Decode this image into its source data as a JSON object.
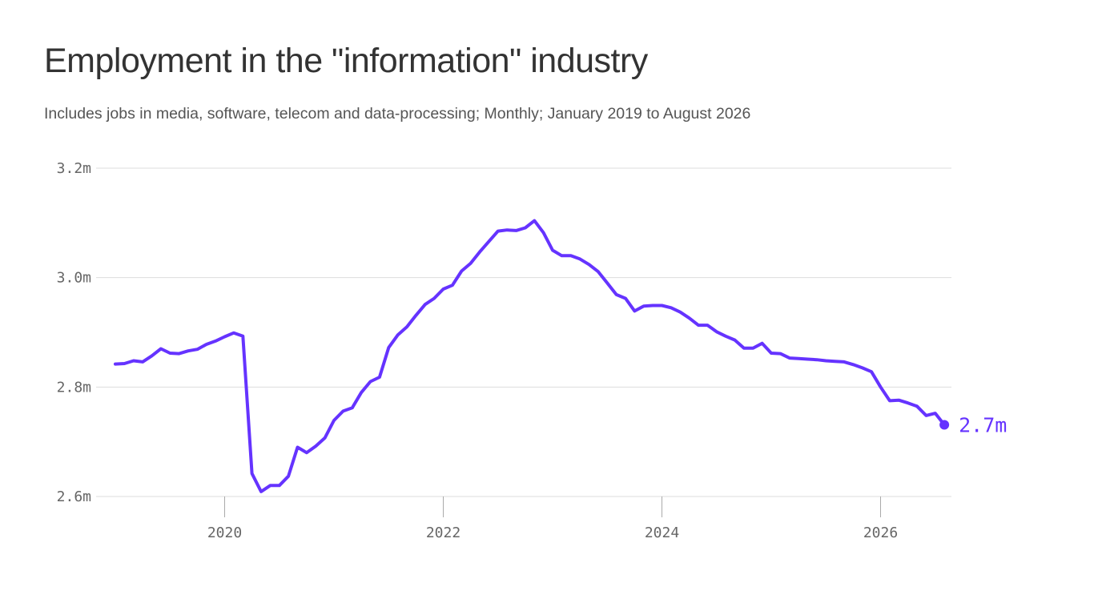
{
  "title": "Employment in the \"information\" industry",
  "subtitle": "Includes jobs in media, software, telecom and data-processing; Monthly; January 2019 to August 2026",
  "chart_data": {
    "type": "line",
    "title": "Employment in the \"information\" industry",
    "subtitle": "Includes jobs in media, software, telecom and data-processing; Monthly; January 2019 to August 2026",
    "xlabel": "",
    "ylabel": "",
    "x_ticks": [
      "2020",
      "2022",
      "2024",
      "2026"
    ],
    "y_ticks": [
      "2.6m",
      "2.8m",
      "3.0m",
      "3.2m"
    ],
    "y_tick_values": [
      2.6,
      2.8,
      3.0,
      3.2
    ],
    "ylim": [
      2.6,
      3.2
    ],
    "xlim": [
      "2019-01",
      "2026-08"
    ],
    "grid": "horizontal",
    "line_color": "#6533ff",
    "end_label": "2.7m",
    "series": [
      {
        "unit": "millions",
        "x": [
          "2019-01",
          "2019-02",
          "2019-03",
          "2019-04",
          "2019-05",
          "2019-06",
          "2019-07",
          "2019-08",
          "2019-09",
          "2019-10",
          "2019-11",
          "2019-12",
          "2020-01",
          "2020-02",
          "2020-03",
          "2020-04",
          "2020-05",
          "2020-06",
          "2020-07",
          "2020-08",
          "2020-09",
          "2020-10",
          "2020-11",
          "2020-12",
          "2021-01",
          "2021-02",
          "2021-03",
          "2021-04",
          "2021-05",
          "2021-06",
          "2021-07",
          "2021-08",
          "2021-09",
          "2021-10",
          "2021-11",
          "2021-12",
          "2022-01",
          "2022-02",
          "2022-03",
          "2022-04",
          "2022-05",
          "2022-06",
          "2022-07",
          "2022-08",
          "2022-09",
          "2022-10",
          "2022-11",
          "2022-12",
          "2023-01",
          "2023-02",
          "2023-03",
          "2023-04",
          "2023-05",
          "2023-06",
          "2023-07",
          "2023-08",
          "2023-09",
          "2023-10",
          "2023-11",
          "2023-12",
          "2024-01",
          "2024-02",
          "2024-03",
          "2024-04",
          "2024-05",
          "2024-06",
          "2024-07",
          "2024-08",
          "2024-09",
          "2024-10",
          "2024-11",
          "2024-12",
          "2025-01",
          "2025-02",
          "2025-03",
          "2025-04",
          "2025-05",
          "2025-06",
          "2025-07",
          "2025-08",
          "2025-09",
          "2025-10",
          "2025-11",
          "2025-12",
          "2026-01",
          "2026-02",
          "2026-03",
          "2026-04",
          "2026-05",
          "2026-06",
          "2026-07",
          "2026-08"
        ],
        "values": [
          2.842,
          2.843,
          2.848,
          2.846,
          2.857,
          2.87,
          2.862,
          2.861,
          2.866,
          2.869,
          2.878,
          2.884,
          2.892,
          2.899,
          2.893,
          2.642,
          2.609,
          2.62,
          2.62,
          2.637,
          2.69,
          2.68,
          2.692,
          2.707,
          2.739,
          2.756,
          2.762,
          2.79,
          2.81,
          2.818,
          2.872,
          2.895,
          2.91,
          2.931,
          2.951,
          2.962,
          2.979,
          2.986,
          3.012,
          3.026,
          3.047,
          3.066,
          3.085,
          3.087,
          3.086,
          3.091,
          3.104,
          3.082,
          3.05,
          3.04,
          3.04,
          3.034,
          3.024,
          3.011,
          2.99,
          2.969,
          2.962,
          2.939,
          2.948,
          2.949,
          2.949,
          2.945,
          2.937,
          2.926,
          2.913,
          2.913,
          2.901,
          2.893,
          2.886,
          2.871,
          2.871,
          2.88,
          2.862,
          2.861,
          2.853,
          2.852,
          2.851,
          2.85,
          2.848,
          2.847,
          2.846,
          2.841,
          2.835,
          2.828,
          2.8,
          2.775,
          2.776,
          2.771,
          2.765,
          2.748,
          2.752,
          2.731
        ]
      }
    ]
  }
}
